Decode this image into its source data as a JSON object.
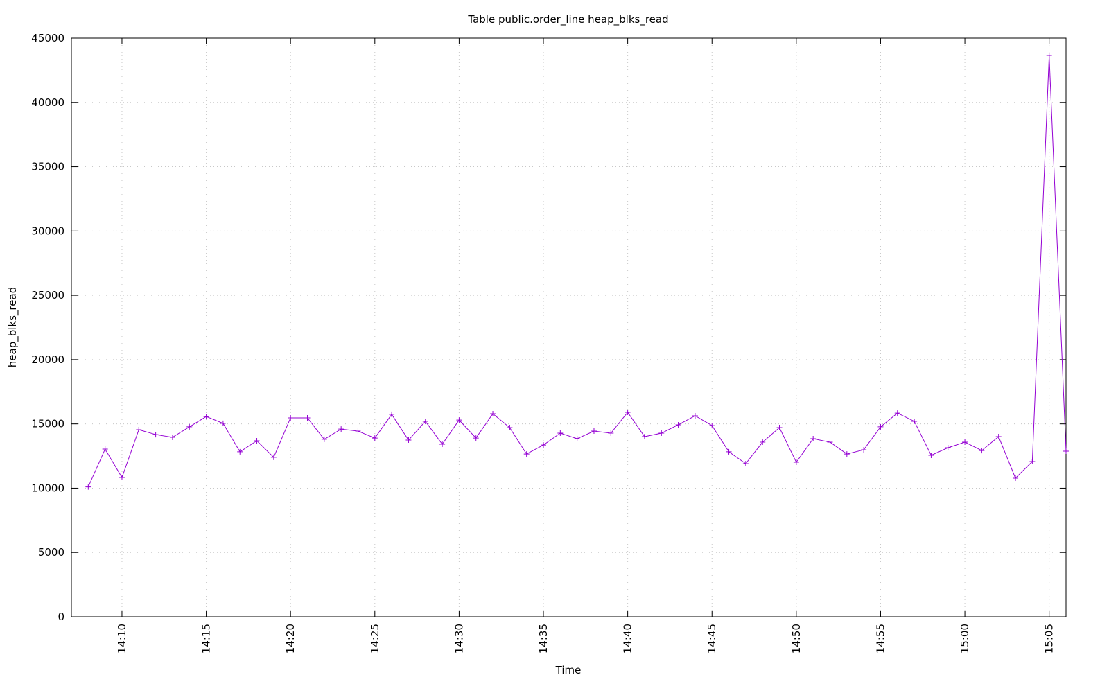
{
  "chart_data": {
    "type": "line",
    "title": "Table public.order_line heap_blks_read",
    "x_label": "Time",
    "y_label": "heap_blks_read",
    "x": [
      "14:08",
      "14:09",
      "14:10",
      "14:11",
      "14:12",
      "14:13",
      "14:14",
      "14:15",
      "14:16",
      "14:17",
      "14:18",
      "14:19",
      "14:20",
      "14:21",
      "14:22",
      "14:23",
      "14:24",
      "14:25",
      "14:26",
      "14:27",
      "14:28",
      "14:29",
      "14:30",
      "14:31",
      "14:32",
      "14:33",
      "14:34",
      "14:35",
      "14:36",
      "14:37",
      "14:38",
      "14:39",
      "14:40",
      "14:41",
      "14:42",
      "14:43",
      "14:44",
      "14:45",
      "14:46",
      "14:47",
      "14:48",
      "14:49",
      "14:50",
      "14:51",
      "14:52",
      "14:53",
      "14:54",
      "14:55",
      "14:56",
      "14:57",
      "14:58",
      "14:59",
      "15:00",
      "15:01",
      "15:02",
      "15:03",
      "15:04",
      "15:05",
      "15:06"
    ],
    "series": [
      {
        "name": "heap_blks_read",
        "color": "#9400d3",
        "values": [
          10100,
          13040,
          10830,
          14550,
          14170,
          13960,
          14770,
          15570,
          15040,
          12830,
          13690,
          12400,
          15470,
          15470,
          13800,
          14600,
          14440,
          13900,
          15740,
          13740,
          15200,
          13420,
          15300,
          13900,
          15790,
          14710,
          12660,
          13360,
          14280,
          13850,
          14440,
          14280,
          15900,
          14010,
          14280,
          14930,
          15630,
          14870,
          12830,
          11910,
          13580,
          14710,
          12020,
          13850,
          13580,
          12660,
          12990,
          14770,
          15840,
          15200,
          12560,
          13150,
          13580,
          12930,
          14010,
          10780,
          12070,
          43650,
          12880
        ]
      }
    ],
    "xlim": [
      "14:07",
      "15:06"
    ],
    "xticks": [
      "14:10",
      "14:15",
      "14:20",
      "14:25",
      "14:30",
      "14:35",
      "14:40",
      "14:45",
      "14:50",
      "14:55",
      "15:00",
      "15:05"
    ],
    "ylim": [
      0,
      45000
    ],
    "yticks": [
      0,
      5000,
      10000,
      15000,
      20000,
      25000,
      30000,
      35000,
      40000,
      45000
    ],
    "grid": true
  }
}
